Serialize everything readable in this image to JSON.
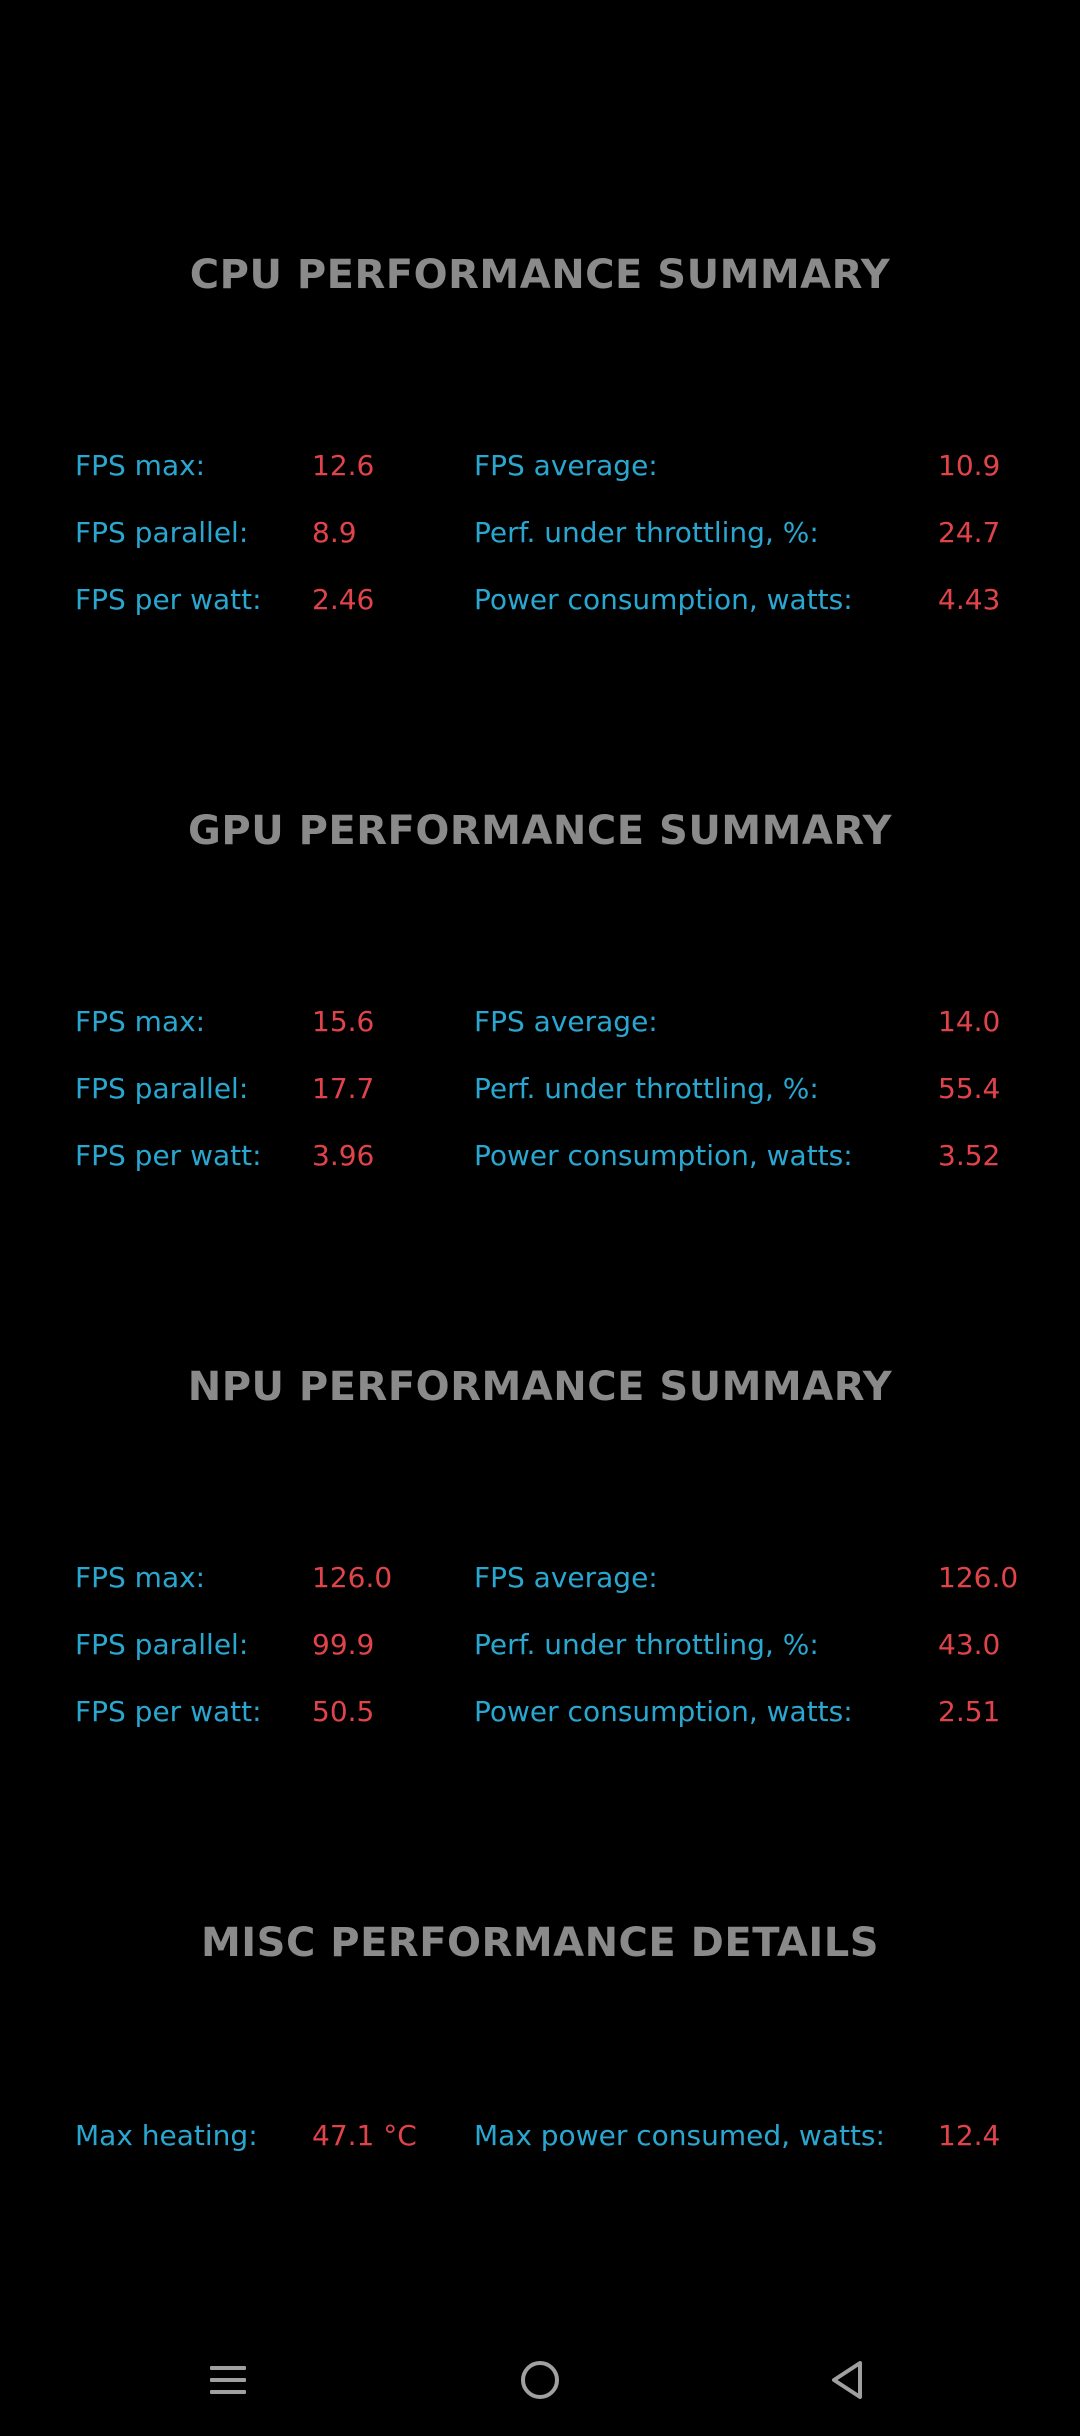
{
  "sections": [
    {
      "title": "CPU PERFORMANCE SUMMARY",
      "rows": [
        {
          "l1": "FPS max:",
          "v1": "12.6",
          "l2": "FPS average:",
          "v2": "10.9"
        },
        {
          "l1": "FPS parallel:",
          "v1": "8.9",
          "l2": "Perf. under throttling, %:",
          "v2": "24.7"
        },
        {
          "l1": "FPS per watt:",
          "v1": "2.46",
          "l2": "Power consumption, watts:",
          "v2": "4.43"
        }
      ]
    },
    {
      "title": "GPU PERFORMANCE SUMMARY",
      "rows": [
        {
          "l1": "FPS max:",
          "v1": "15.6",
          "l2": "FPS average:",
          "v2": "14.0"
        },
        {
          "l1": "FPS parallel:",
          "v1": "17.7",
          "l2": "Perf. under throttling, %:",
          "v2": "55.4"
        },
        {
          "l1": "FPS per watt:",
          "v1": "3.96",
          "l2": "Power consumption, watts:",
          "v2": "3.52"
        }
      ]
    },
    {
      "title": "NPU PERFORMANCE SUMMARY",
      "rows": [
        {
          "l1": "FPS max:",
          "v1": "126.0",
          "l2": "FPS average:",
          "v2": "126.0"
        },
        {
          "l1": "FPS parallel:",
          "v1": "99.9",
          "l2": "Perf. under throttling, %:",
          "v2": "43.0"
        },
        {
          "l1": "FPS per watt:",
          "v1": "50.5",
          "l2": "Power consumption, watts:",
          "v2": "2.51"
        }
      ]
    },
    {
      "title": "MISC PERFORMANCE DETAILS",
      "rows": [
        {
          "l1": "Max heating:",
          "v1": "47.1 °C",
          "l2": "Max power consumed, watts:",
          "v2": "12.4"
        }
      ]
    }
  ],
  "navbar": {
    "menu_icon": "menu-icon",
    "home_icon": "home-icon",
    "back_icon": "back-icon"
  },
  "colors": {
    "background": "#000000",
    "title": "#8a8a8a",
    "label": "#2aa7d0",
    "value": "#e0434a",
    "nav_icon": "#a0a0a0"
  }
}
